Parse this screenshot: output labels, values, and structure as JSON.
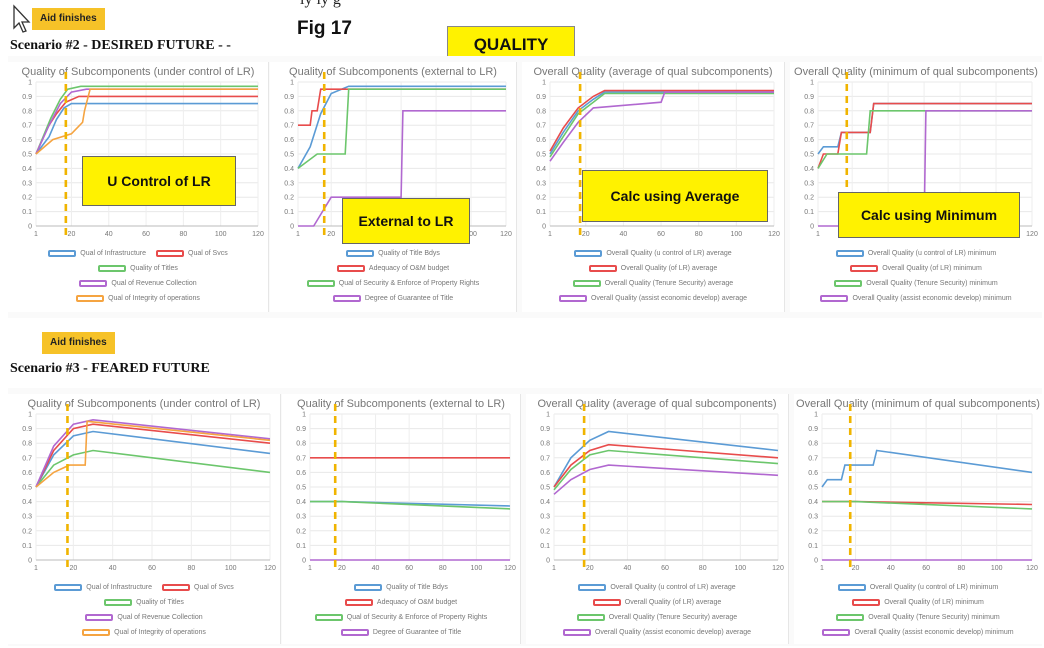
{
  "header": {
    "clipped_text": "ly                                                                                    ly  g",
    "fig_label": "Fig 17",
    "quality_badge": "QUALITY"
  },
  "aid_badge": "Aid finishes",
  "colors": {
    "blue": "#5b9bd5",
    "red": "#e84c4c",
    "green": "#6cc66c",
    "purple": "#b168d0",
    "orange": "#f5a441",
    "marker": "#f0b400",
    "callout": "#fff200"
  },
  "scenarios": [
    {
      "title": "Scenario #2 - DESIRED FUTURE - -",
      "callouts": [
        "U Control of LR",
        "External to LR",
        "Calc using Average",
        "Calc using Minimum"
      ]
    },
    {
      "title": "Scenario #3 - FEARED FUTURE",
      "callouts": []
    }
  ],
  "chart_data": [
    {
      "scenario": "Scenario #2 - DESIRED FUTURE",
      "title": "Quality of Subcomponents (under control of LR)",
      "type": "line",
      "xlim": [
        1,
        120
      ],
      "ylim": [
        0,
        1
      ],
      "xticks": [
        1,
        20,
        40,
        60,
        80,
        100,
        120
      ],
      "yticks": [
        "0",
        "0.1",
        "0.2",
        "0.3",
        "0.4",
        "0.5",
        "0.6",
        "0.7",
        "0.8",
        "0.9",
        "1"
      ],
      "marker_x": 17,
      "legend_rows": [
        [
          0,
          1
        ],
        [
          2
        ],
        [
          3
        ],
        [
          4
        ]
      ],
      "series": [
        {
          "name": "Qual of Infrastructure",
          "color": "blue",
          "x": [
            1,
            8,
            12,
            16,
            20,
            120
          ],
          "y": [
            0.5,
            0.62,
            0.74,
            0.82,
            0.85,
            0.85
          ]
        },
        {
          "name": "Qual of Svcs",
          "color": "red",
          "x": [
            1,
            7,
            12,
            17,
            24,
            120
          ],
          "y": [
            0.5,
            0.68,
            0.78,
            0.86,
            0.9,
            0.9
          ]
        },
        {
          "name": "Quality of Titles",
          "color": "green",
          "x": [
            1,
            9,
            14,
            18,
            25,
            120
          ],
          "y": [
            0.5,
            0.75,
            0.88,
            0.95,
            0.97,
            0.97
          ]
        },
        {
          "name": "Qual of Revenue Collection",
          "color": "purple",
          "x": [
            1,
            8,
            14,
            20,
            28,
            120
          ],
          "y": [
            0.5,
            0.7,
            0.85,
            0.93,
            0.95,
            0.95
          ]
        },
        {
          "name": "Qual of Integrity of operations",
          "color": "orange",
          "x": [
            1,
            10,
            20,
            26,
            27,
            30,
            120
          ],
          "y": [
            0.5,
            0.6,
            0.64,
            0.72,
            0.8,
            0.95,
            0.95
          ]
        }
      ]
    },
    {
      "scenario": "Scenario #2 - DESIRED FUTURE",
      "title": "Quality of Subcomponents (external to LR)",
      "type": "line",
      "xlim": [
        1,
        120
      ],
      "ylim": [
        0,
        1
      ],
      "xticks": [
        1,
        20,
        40,
        60,
        80,
        100,
        120
      ],
      "yticks": [
        "0",
        "0.1",
        "0.2",
        "0.3",
        "0.4",
        "0.5",
        "0.6",
        "0.7",
        "0.8",
        "0.9",
        "1"
      ],
      "marker_x": 16,
      "legend_rows": [
        [
          0
        ],
        [
          1
        ],
        [
          2
        ],
        [
          3
        ]
      ],
      "series": [
        {
          "name": "Quality of Title Bdys",
          "color": "blue",
          "x": [
            1,
            8,
            14,
            20,
            30,
            120
          ],
          "y": [
            0.4,
            0.55,
            0.78,
            0.92,
            0.97,
            0.97
          ]
        },
        {
          "name": "Adequacy of O&M budget",
          "color": "red",
          "x": [
            1,
            8,
            9,
            12,
            14,
            120
          ],
          "y": [
            0.7,
            0.7,
            0.8,
            0.8,
            0.95,
            0.95
          ]
        },
        {
          "name": "Qual of Security & Enforce of Property Rights",
          "color": "green",
          "x": [
            1,
            12,
            18,
            28,
            30,
            120
          ],
          "y": [
            0.4,
            0.5,
            0.5,
            0.5,
            0.95,
            0.95
          ]
        },
        {
          "name": "Degree of Guarantee of Title",
          "color": "purple",
          "x": [
            1,
            10,
            20,
            60,
            61,
            120
          ],
          "y": [
            0,
            0,
            0.2,
            0.2,
            0.8,
            0.8
          ]
        }
      ]
    },
    {
      "scenario": "Scenario #2 - DESIRED FUTURE",
      "title": "Overall Quality (average of qual subcomponents)",
      "type": "line",
      "xlim": [
        1,
        120
      ],
      "ylim": [
        0,
        1
      ],
      "xticks": [
        1,
        20,
        40,
        60,
        80,
        100,
        120
      ],
      "yticks": [
        "0",
        "0.1",
        "0.2",
        "0.3",
        "0.4",
        "0.5",
        "0.6",
        "0.7",
        "0.8",
        "0.9",
        "1"
      ],
      "marker_x": 17,
      "legend_rows": [
        [
          0
        ],
        [
          1
        ],
        [
          2
        ],
        [
          3
        ]
      ],
      "series": [
        {
          "name": "Overall Quality (u control of LR) average",
          "color": "blue",
          "x": [
            1,
            8,
            16,
            24,
            30,
            120
          ],
          "y": [
            0.5,
            0.65,
            0.8,
            0.88,
            0.93,
            0.93
          ]
        },
        {
          "name": "Overall Quality (of LR) average",
          "color": "red",
          "x": [
            1,
            8,
            16,
            24,
            30,
            120
          ],
          "y": [
            0.52,
            0.68,
            0.82,
            0.9,
            0.94,
            0.94
          ]
        },
        {
          "name": "Overall Quality (Tenure Security) average",
          "color": "green",
          "x": [
            1,
            8,
            16,
            24,
            30,
            120
          ],
          "y": [
            0.48,
            0.62,
            0.78,
            0.86,
            0.92,
            0.92
          ]
        },
        {
          "name": "Overall Quality (assist economic develop) average",
          "color": "purple",
          "x": [
            1,
            8,
            16,
            24,
            60,
            62,
            120
          ],
          "y": [
            0.45,
            0.58,
            0.72,
            0.82,
            0.86,
            0.93,
            0.93
          ]
        }
      ]
    },
    {
      "scenario": "Scenario #2 - DESIRED FUTURE",
      "title": "Overall Quality (minimum of qual subcomponents)",
      "type": "line",
      "xlim": [
        1,
        120
      ],
      "ylim": [
        0,
        1
      ],
      "xticks": [
        1,
        20,
        40,
        60,
        80,
        100,
        120
      ],
      "yticks": [
        "0",
        "0.1",
        "0.2",
        "0.3",
        "0.4",
        "0.5",
        "0.6",
        "0.7",
        "0.8",
        "0.9",
        "1"
      ],
      "marker_x": 17,
      "legend_rows": [
        [
          0
        ],
        [
          1
        ],
        [
          2
        ],
        [
          3
        ]
      ],
      "series": [
        {
          "name": "Overall Quality (u control of LR) minimum",
          "color": "blue",
          "x": [
            1,
            4,
            12,
            14,
            30,
            32,
            120
          ],
          "y": [
            0.5,
            0.55,
            0.55,
            0.65,
            0.65,
            0.85,
            0.85
          ]
        },
        {
          "name": "Overall Quality (of LR) minimum",
          "color": "red",
          "x": [
            1,
            4,
            12,
            14,
            30,
            32,
            120
          ],
          "y": [
            0.4,
            0.5,
            0.5,
            0.65,
            0.65,
            0.85,
            0.85
          ]
        },
        {
          "name": "Overall Quality (Tenure Security) minimum",
          "color": "green",
          "x": [
            1,
            6,
            16,
            28,
            30,
            120
          ],
          "y": [
            0.4,
            0.5,
            0.5,
            0.5,
            0.8,
            0.8
          ]
        },
        {
          "name": "Overall Quality (assist economic develop) minimum",
          "color": "purple",
          "x": [
            1,
            10,
            60,
            61,
            120
          ],
          "y": [
            0,
            0,
            0,
            0.8,
            0.8
          ]
        }
      ]
    },
    {
      "scenario": "Scenario #3 - FEARED FUTURE",
      "title": "Quality of Subcomponents (under control of LR)",
      "type": "line",
      "xlim": [
        1,
        120
      ],
      "ylim": [
        0,
        1
      ],
      "xticks": [
        1,
        20,
        40,
        60,
        80,
        100,
        120
      ],
      "yticks": [
        "0",
        "0.1",
        "0.2",
        "0.3",
        "0.4",
        "0.5",
        "0.6",
        "0.7",
        "0.8",
        "0.9",
        "1"
      ],
      "marker_x": 17,
      "legend_rows": [
        [
          0,
          1
        ],
        [
          2
        ],
        [
          3
        ],
        [
          4
        ]
      ],
      "series": [
        {
          "name": "Qual of Infrastructure",
          "color": "blue",
          "x": [
            1,
            10,
            20,
            30,
            120
          ],
          "y": [
            0.5,
            0.72,
            0.85,
            0.88,
            0.73
          ]
        },
        {
          "name": "Qual of Svcs",
          "color": "red",
          "x": [
            1,
            10,
            20,
            30,
            120
          ],
          "y": [
            0.5,
            0.75,
            0.9,
            0.93,
            0.8
          ]
        },
        {
          "name": "Quality of Titles",
          "color": "green",
          "x": [
            1,
            10,
            20,
            30,
            120
          ],
          "y": [
            0.5,
            0.65,
            0.72,
            0.75,
            0.6
          ]
        },
        {
          "name": "Qual of Revenue Collection",
          "color": "purple",
          "x": [
            1,
            10,
            20,
            30,
            120
          ],
          "y": [
            0.5,
            0.78,
            0.93,
            0.96,
            0.83
          ]
        },
        {
          "name": "Qual of Integrity of operations",
          "color": "orange",
          "x": [
            1,
            10,
            18,
            26,
            27,
            120
          ],
          "y": [
            0.5,
            0.6,
            0.65,
            0.65,
            0.95,
            0.82
          ]
        }
      ]
    },
    {
      "scenario": "Scenario #3 - FEARED FUTURE",
      "title": "Quality of Subcomponents (external to LR)",
      "type": "line",
      "xlim": [
        1,
        120
      ],
      "ylim": [
        0,
        1
      ],
      "xticks": [
        1,
        20,
        40,
        60,
        80,
        100,
        120
      ],
      "yticks": [
        "0",
        "0.1",
        "0.2",
        "0.3",
        "0.4",
        "0.5",
        "0.6",
        "0.7",
        "0.8",
        "0.9",
        "1"
      ],
      "marker_x": 16,
      "legend_rows": [
        [
          0
        ],
        [
          1
        ],
        [
          2
        ],
        [
          3
        ]
      ],
      "series": [
        {
          "name": "Quality of Title Bdys",
          "color": "blue",
          "x": [
            1,
            20,
            120
          ],
          "y": [
            0.4,
            0.4,
            0.37
          ]
        },
        {
          "name": "Adequacy of O&M budget",
          "color": "red",
          "x": [
            1,
            120
          ],
          "y": [
            0.7,
            0.7
          ]
        },
        {
          "name": "Qual of Security & Enforce of Property Rights",
          "color": "green",
          "x": [
            1,
            20,
            120
          ],
          "y": [
            0.4,
            0.4,
            0.35
          ]
        },
        {
          "name": "Degree of Guarantee of Title",
          "color": "purple",
          "x": [
            1,
            120
          ],
          "y": [
            0,
            0
          ]
        }
      ]
    },
    {
      "scenario": "Scenario #3 - FEARED FUTURE",
      "title": "Overall Quality (average of qual subcomponents)",
      "type": "line",
      "xlim": [
        1,
        120
      ],
      "ylim": [
        0,
        1
      ],
      "xticks": [
        1,
        20,
        40,
        60,
        80,
        100,
        120
      ],
      "yticks": [
        "0",
        "0.1",
        "0.2",
        "0.3",
        "0.4",
        "0.5",
        "0.6",
        "0.7",
        "0.8",
        "0.9",
        "1"
      ],
      "marker_x": 17,
      "legend_rows": [
        [
          0
        ],
        [
          1
        ],
        [
          2
        ],
        [
          3
        ]
      ],
      "series": [
        {
          "name": "Overall Quality (u control of LR) average",
          "color": "blue",
          "x": [
            1,
            10,
            20,
            30,
            120
          ],
          "y": [
            0.5,
            0.7,
            0.82,
            0.88,
            0.75
          ]
        },
        {
          "name": "Overall Quality (of LR) average",
          "color": "red",
          "x": [
            1,
            10,
            20,
            30,
            120
          ],
          "y": [
            0.5,
            0.65,
            0.75,
            0.79,
            0.7
          ]
        },
        {
          "name": "Overall Quality (Tenure Security) average",
          "color": "green",
          "x": [
            1,
            10,
            20,
            30,
            120
          ],
          "y": [
            0.48,
            0.62,
            0.72,
            0.75,
            0.66
          ]
        },
        {
          "name": "Overall Quality (assist economic develop) average",
          "color": "purple",
          "x": [
            1,
            10,
            20,
            30,
            120
          ],
          "y": [
            0.45,
            0.55,
            0.62,
            0.65,
            0.58
          ]
        }
      ]
    },
    {
      "scenario": "Scenario #3 - FEARED FUTURE",
      "title": "Overall Quality (minimum of qual subcomponents)",
      "type": "line",
      "xlim": [
        1,
        120
      ],
      "ylim": [
        0,
        1
      ],
      "xticks": [
        1,
        20,
        40,
        60,
        80,
        100,
        120
      ],
      "yticks": [
        "0",
        "0.1",
        "0.2",
        "0.3",
        "0.4",
        "0.5",
        "0.6",
        "0.7",
        "0.8",
        "0.9",
        "1"
      ],
      "marker_x": 17,
      "legend_rows": [
        [
          0
        ],
        [
          1
        ],
        [
          2
        ],
        [
          3
        ]
      ],
      "series": [
        {
          "name": "Overall Quality (u control of LR) minimum",
          "color": "blue",
          "x": [
            1,
            4,
            12,
            14,
            30,
            32,
            120
          ],
          "y": [
            0.5,
            0.55,
            0.55,
            0.65,
            0.65,
            0.75,
            0.6
          ]
        },
        {
          "name": "Overall Quality (of LR) minimum",
          "color": "red",
          "x": [
            1,
            20,
            120
          ],
          "y": [
            0.4,
            0.4,
            0.38
          ]
        },
        {
          "name": "Overall Quality (Tenure Security) minimum",
          "color": "green",
          "x": [
            1,
            20,
            120
          ],
          "y": [
            0.4,
            0.4,
            0.35
          ]
        },
        {
          "name": "Overall Quality (assist economic develop) minimum",
          "color": "purple",
          "x": [
            1,
            120
          ],
          "y": [
            0,
            0
          ]
        }
      ]
    }
  ]
}
